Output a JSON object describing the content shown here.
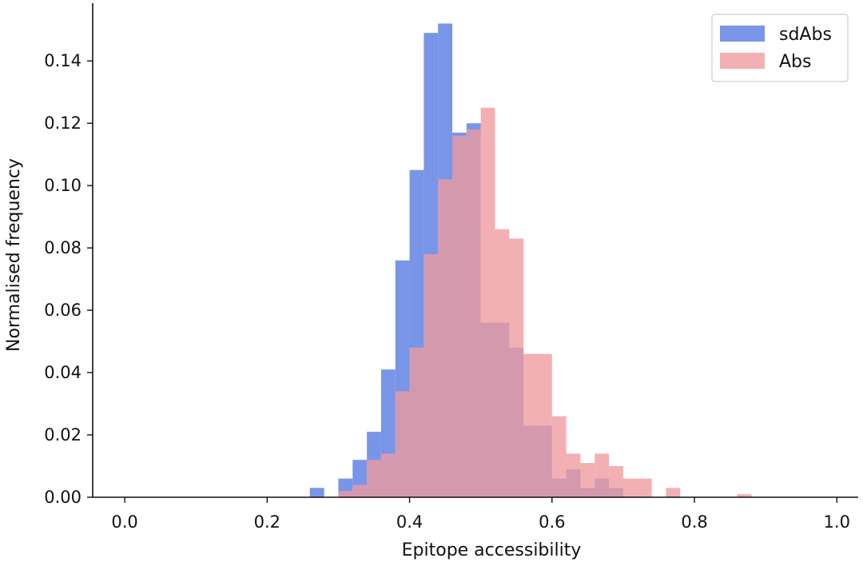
{
  "chart_data": {
    "type": "histogram",
    "title": "",
    "xlabel": "Epitope accessibility",
    "ylabel": "Normalised frequency",
    "xlim": [
      -0.045,
      1.03
    ],
    "ylim": [
      0,
      0.1575
    ],
    "xticks": [
      0.0,
      0.2,
      0.4,
      0.6,
      0.8,
      1.0
    ],
    "xtick_labels": [
      "0.0",
      "0.2",
      "0.4",
      "0.6",
      "0.8",
      "1.0"
    ],
    "yticks": [
      0.0,
      0.02,
      0.04,
      0.06,
      0.08,
      0.1,
      0.12,
      0.14
    ],
    "ytick_labels": [
      "0.00",
      "0.02",
      "0.04",
      "0.06",
      "0.08",
      "0.10",
      "0.12",
      "0.14"
    ],
    "grid": false,
    "legend_position": "top-right",
    "colors": {
      "sdAbs": "#6a8ae6",
      "Abs": "#f09a9d",
      "axis": "#111111"
    },
    "series": [
      {
        "name": "sdAbs",
        "bin_width": 0.02,
        "bin_starts": [
          0.26,
          0.28,
          0.3,
          0.32,
          0.34,
          0.36,
          0.38,
          0.4,
          0.42,
          0.44,
          0.46,
          0.48,
          0.5,
          0.52,
          0.54,
          0.56,
          0.58,
          0.6,
          0.62,
          0.64,
          0.66,
          0.68
        ],
        "values": [
          0.003,
          0.0,
          0.006,
          0.012,
          0.021,
          0.041,
          0.076,
          0.105,
          0.149,
          0.152,
          0.117,
          0.12,
          0.056,
          0.056,
          0.048,
          0.023,
          0.023,
          0.006,
          0.009,
          0.003,
          0.006,
          0.003
        ]
      },
      {
        "name": "Abs",
        "bin_width": 0.02,
        "bin_starts": [
          0.3,
          0.32,
          0.34,
          0.36,
          0.38,
          0.4,
          0.42,
          0.44,
          0.46,
          0.48,
          0.5,
          0.52,
          0.54,
          0.56,
          0.58,
          0.6,
          0.62,
          0.64,
          0.66,
          0.68,
          0.7,
          0.72,
          0.74,
          0.76,
          0.78,
          0.8,
          0.82,
          0.84,
          0.86
        ],
        "values": [
          0.002,
          0.004,
          0.012,
          0.014,
          0.034,
          0.048,
          0.078,
          0.102,
          0.116,
          0.118,
          0.125,
          0.086,
          0.083,
          0.046,
          0.046,
          0.026,
          0.014,
          0.011,
          0.014,
          0.01,
          0.006,
          0.006,
          0.0,
          0.003,
          0.0,
          0.0,
          0.0,
          0.0,
          0.001
        ]
      }
    ]
  }
}
